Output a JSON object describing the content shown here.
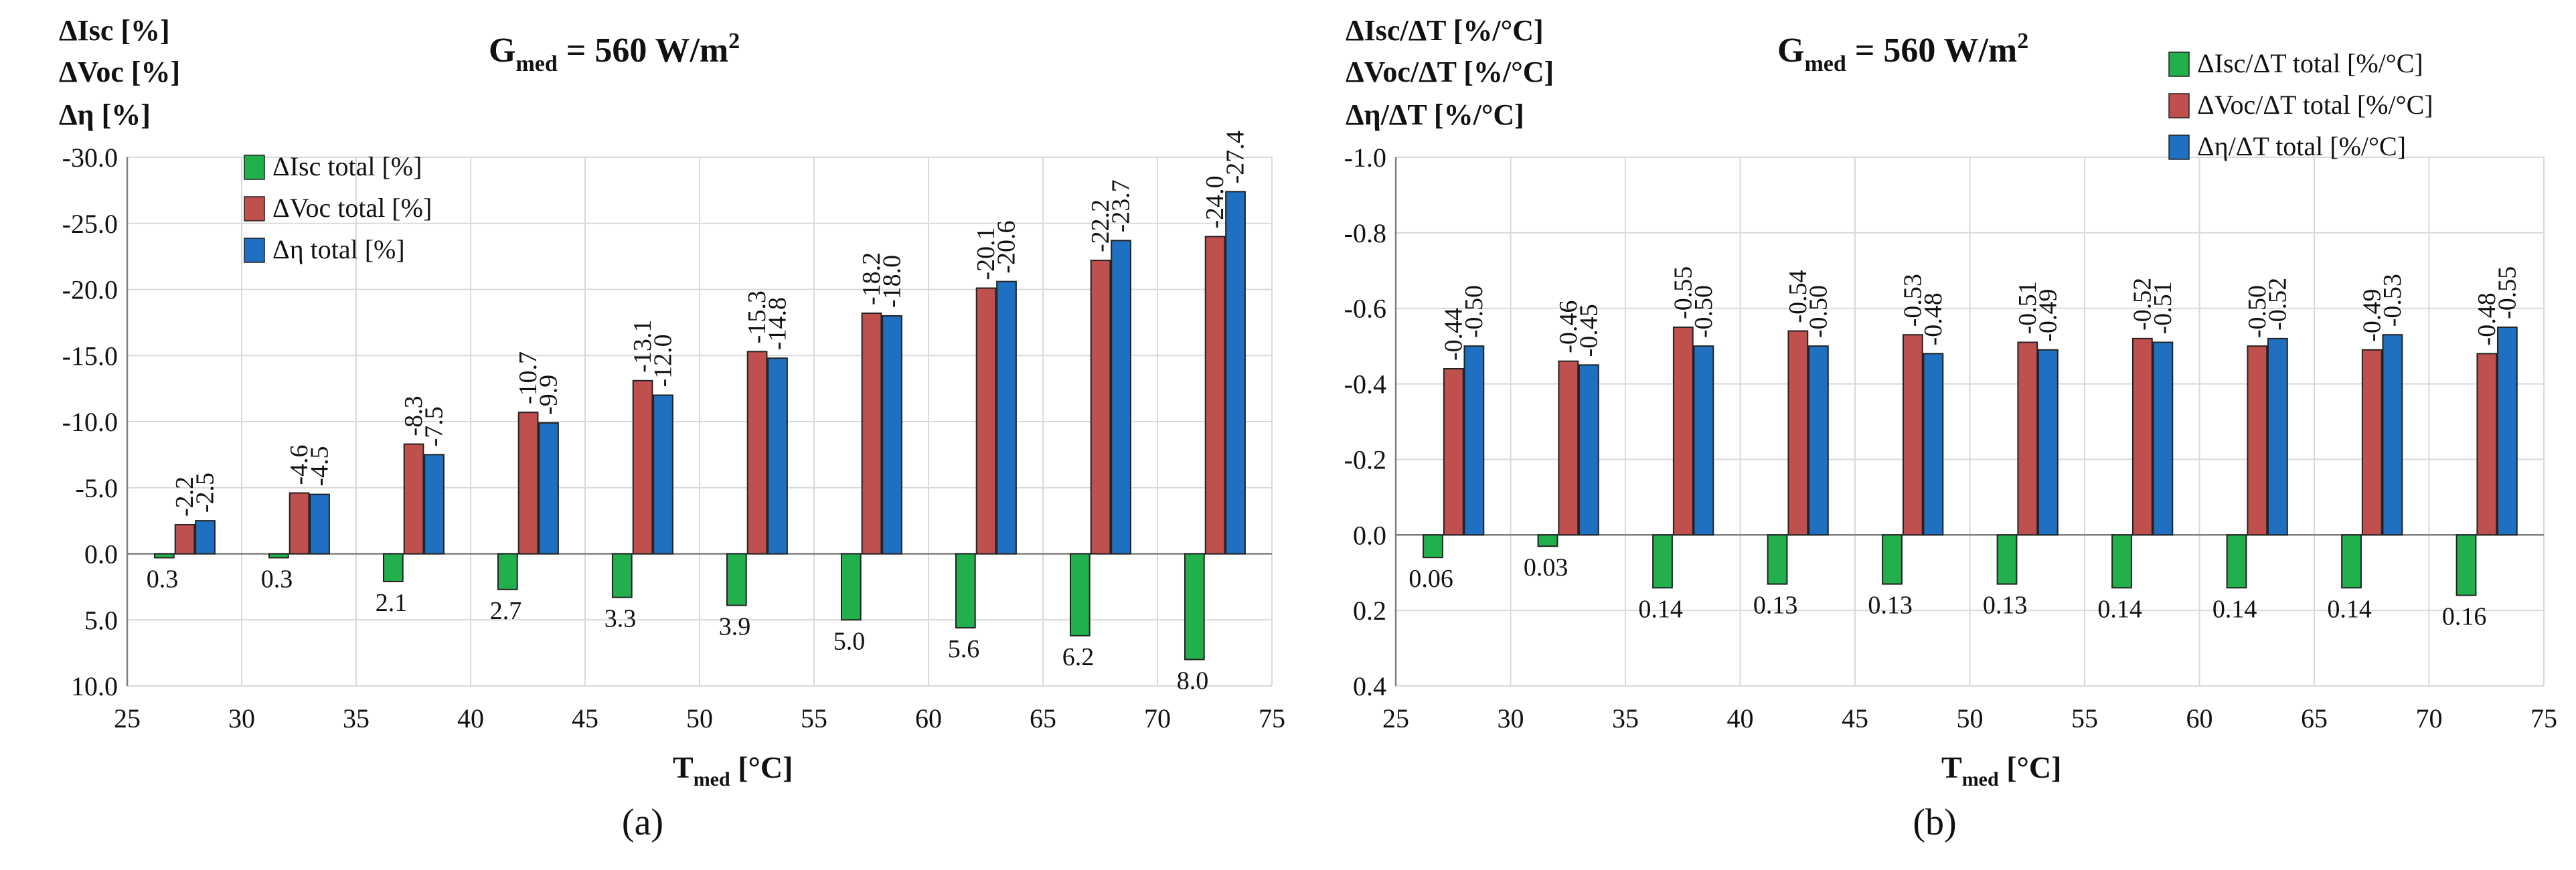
{
  "colors": {
    "isc": "#21b04b",
    "voc": "#c0504d",
    "eta": "#1f70c1",
    "grid": "#d9d9d9",
    "axis": "#7f7f7f"
  },
  "chart_data": [
    {
      "type": "bar",
      "panel_label": "(a)",
      "title_main": "G",
      "title_sub": "med",
      "title_rest": " = 560 W/m",
      "title_sup": "2",
      "ylabel_lines": [
        "ΔIsc [%]",
        "ΔVoc [%]",
        "Δη [%]"
      ],
      "xlabel_main": "T",
      "xlabel_sub": "med",
      "xlabel_rest": " [°C]",
      "x_ticks": [
        "25",
        "30",
        "35",
        "40",
        "45",
        "50",
        "55",
        "60",
        "65",
        "70",
        "75"
      ],
      "y_ticks": [
        "-30.0",
        "-25.0",
        "-20.0",
        "-15.0",
        "-10.0",
        "-5.0",
        "0.0",
        "5.0",
        "10.0"
      ],
      "ylim": [
        10,
        -30
      ],
      "inverted_y": true,
      "xlim": [
        25,
        75
      ],
      "legend_position": "top-left",
      "series": [
        {
          "name": "ΔIsc total [%]",
          "key": "isc",
          "values": [
            0.3,
            0.3,
            2.1,
            2.7,
            3.3,
            3.9,
            5.0,
            5.6,
            6.2,
            8.0
          ],
          "labels": [
            "0.3",
            "0.3",
            "2.1",
            "2.7",
            "3.3",
            "3.9",
            "5.0",
            "5.6",
            "6.2",
            "8.0"
          ]
        },
        {
          "name": "ΔVoc total [%]",
          "key": "voc",
          "values": [
            -2.2,
            -4.6,
            -8.3,
            -10.7,
            -13.1,
            -15.3,
            -18.2,
            -20.1,
            -22.2,
            -24.0
          ],
          "labels": [
            "-2.2",
            "-4.6",
            "-8.3",
            "-10.7",
            "-13.1",
            "-15.3",
            "-18.2",
            "-20.1",
            "-22.2",
            "-24.0"
          ]
        },
        {
          "name": "Δη total [%]",
          "key": "eta",
          "values": [
            -2.5,
            -4.5,
            -7.5,
            -9.9,
            -12.0,
            -14.8,
            -18.0,
            -20.6,
            -23.7,
            -27.4
          ],
          "labels": [
            "-2.5",
            "-4.5",
            "-7.5",
            "-9.9",
            "-12.0",
            "-14.8",
            "-18.0",
            "-20.6",
            "-23.7",
            "-27.4"
          ]
        }
      ]
    },
    {
      "type": "bar",
      "panel_label": "(b)",
      "title_main": "G",
      "title_sub": "med",
      "title_rest": " = 560 W/m",
      "title_sup": "2",
      "ylabel_lines": [
        "ΔIsc/ΔT [%/°C]",
        "ΔVoc/ΔT [%/°C]",
        "Δη/ΔT [%/°C]"
      ],
      "xlabel_main": "T",
      "xlabel_sub": "med",
      "xlabel_rest": " [°C]",
      "x_ticks": [
        "25",
        "30",
        "35",
        "40",
        "45",
        "50",
        "55",
        "60",
        "65",
        "70",
        "75"
      ],
      "y_ticks": [
        "-1.0",
        "-0.8",
        "-0.6",
        "-0.4",
        "-0.2",
        "0.0",
        "0.2",
        "0.4"
      ],
      "ylim": [
        0.4,
        -1.0
      ],
      "inverted_y": true,
      "xlim": [
        25,
        75
      ],
      "legend_position": "top-right",
      "series": [
        {
          "name": "ΔIsc/ΔT total [%/°C]",
          "key": "isc",
          "values": [
            0.06,
            0.03,
            0.14,
            0.13,
            0.13,
            0.13,
            0.14,
            0.14,
            0.14,
            0.16
          ],
          "labels": [
            "0.06",
            "0.03",
            "0.14",
            "0.13",
            "0.13",
            "0.13",
            "0.14",
            "0.14",
            "0.14",
            "0.16"
          ]
        },
        {
          "name": "ΔVoc/ΔT total [%/°C]",
          "key": "voc",
          "values": [
            -0.44,
            -0.46,
            -0.55,
            -0.54,
            -0.53,
            -0.51,
            -0.52,
            -0.5,
            -0.49,
            -0.48
          ],
          "labels": [
            "-0.44",
            "-0.46",
            "-0.55",
            "-0.54",
            "-0.53",
            "-0.51",
            "-0.52",
            "-0.50",
            "-0.49",
            "-0.48"
          ]
        },
        {
          "name": "Δη/ΔT total [%/°C]",
          "key": "eta",
          "values": [
            -0.5,
            -0.45,
            -0.5,
            -0.5,
            -0.48,
            -0.49,
            -0.51,
            -0.52,
            -0.53,
            -0.55
          ],
          "labels": [
            "-0.50",
            "-0.45",
            "-0.50",
            "-0.50",
            "-0.48",
            "-0.49",
            "-0.51",
            "-0.52",
            "-0.53",
            "-0.55"
          ]
        }
      ]
    }
  ]
}
